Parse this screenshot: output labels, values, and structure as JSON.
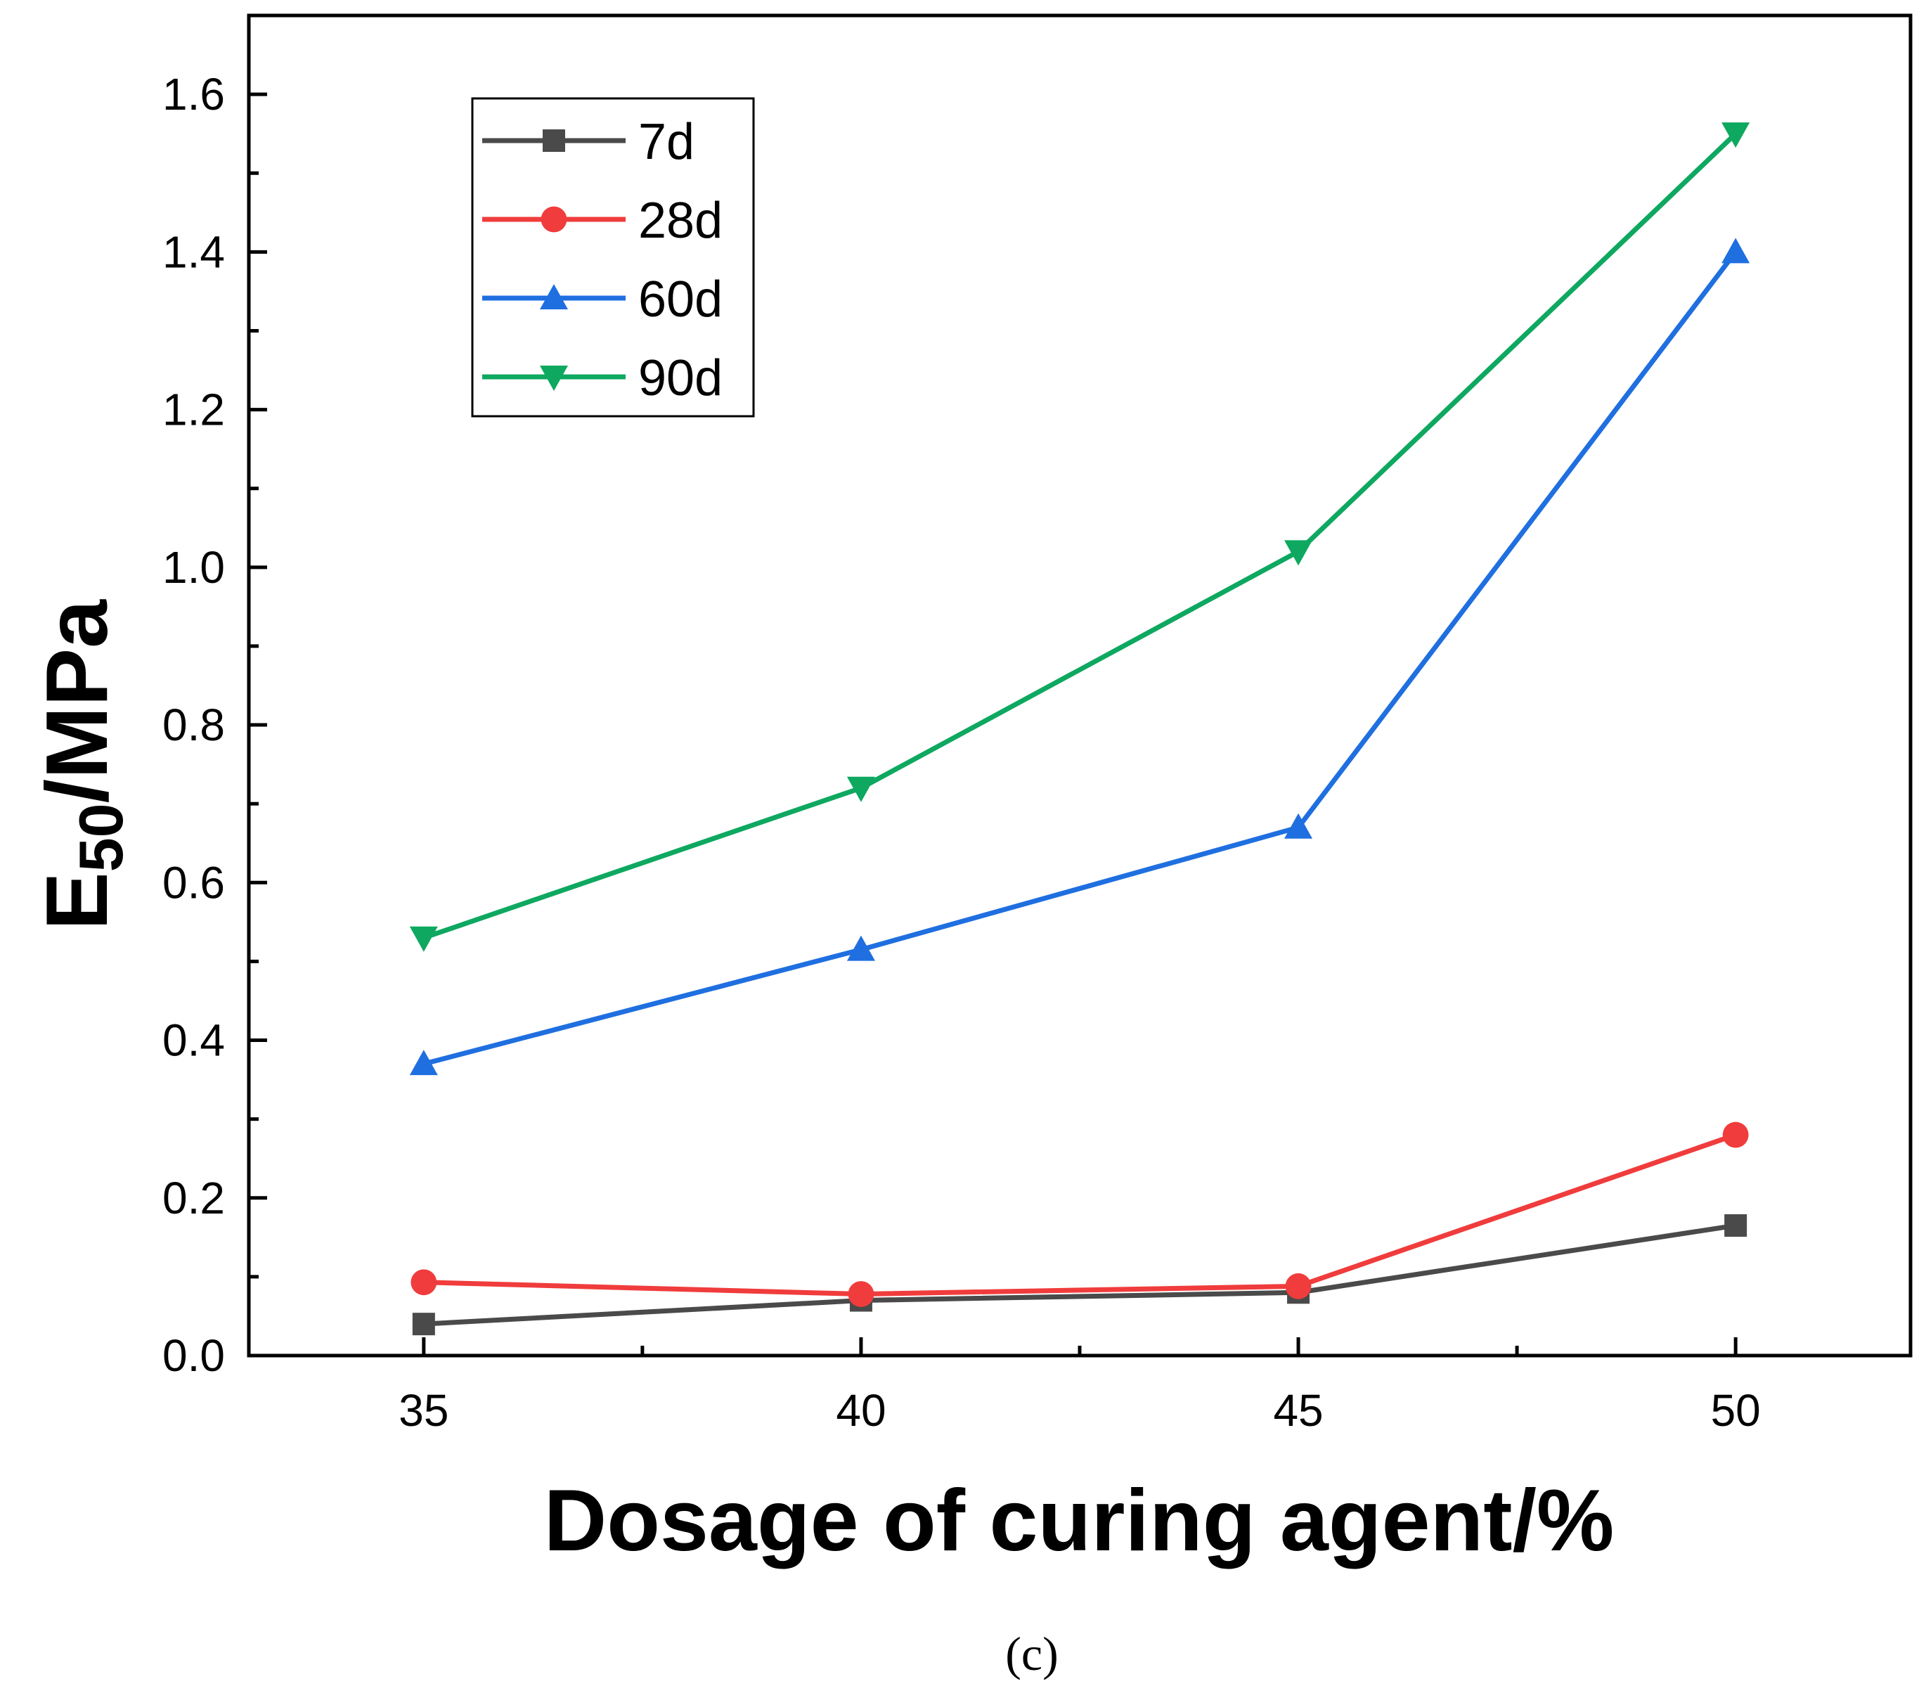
{
  "chart_data": {
    "type": "line",
    "title": "",
    "x": [
      35,
      40,
      45,
      50
    ],
    "xlabel": "Dosage of curing agent/%",
    "ylabel_main": "E",
    "ylabel_sub": "50",
    "ylabel_rest": "/MPa",
    "xlim": [
      33,
      52
    ],
    "ylim": [
      0.0,
      1.7
    ],
    "xticks": [
      "35",
      "40",
      "45",
      "50"
    ],
    "yticks": [
      "0.0",
      "0.2",
      "0.4",
      "0.6",
      "0.8",
      "1.0",
      "1.2",
      "1.4",
      "1.6"
    ],
    "legend_position": "top-left",
    "series": [
      {
        "name": "7d",
        "values": [
          0.04,
          0.07,
          0.08,
          0.165
        ],
        "color": "#4a4a4a",
        "marker": "square"
      },
      {
        "name": "28d",
        "values": [
          0.093,
          0.078,
          0.088,
          0.28
        ],
        "color": "#f03c3c",
        "marker": "circle"
      },
      {
        "name": "60d",
        "values": [
          0.37,
          0.515,
          0.67,
          1.4
        ],
        "color": "#1f6fe0",
        "marker": "triangle-up"
      },
      {
        "name": "90d",
        "values": [
          0.53,
          0.72,
          1.02,
          1.55
        ],
        "color": "#0ea860",
        "marker": "triangle-down"
      }
    ],
    "caption": "(c)"
  }
}
